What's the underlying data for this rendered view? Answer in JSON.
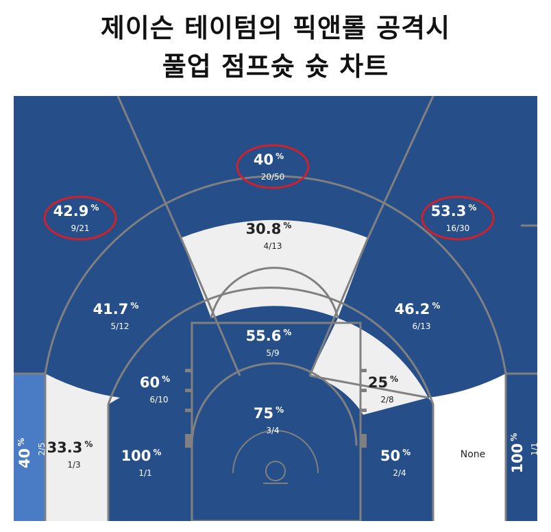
{
  "title": {
    "line1": "제이슨 테이텀의 픽앤롤 공격시",
    "line2": "풀업 점프슛 슛 차트"
  },
  "colors": {
    "blue": "#264f8a",
    "light_blue": "#4a7cc5",
    "gray": "#efefef",
    "white": "#ffffff",
    "line": "#808080",
    "highlight": "#d0212a"
  },
  "chart_data": {
    "type": "shot-zone-map",
    "title": "제이슨 테이텀의 픽앤롤 공격시 풀업 점프슛 슛 차트",
    "zones": [
      {
        "id": "above-break-3-left",
        "pct": "42.9",
        "made": 9,
        "att": 21,
        "frac": "9/21",
        "fill": "blue",
        "highlighted": true
      },
      {
        "id": "above-break-3-center",
        "pct": "40",
        "made": 20,
        "att": 50,
        "frac": "20/50",
        "fill": "blue",
        "highlighted": true
      },
      {
        "id": "above-break-3-right",
        "pct": "53.3",
        "made": 16,
        "att": 30,
        "frac": "16/30",
        "fill": "blue",
        "highlighted": true
      },
      {
        "id": "corner-3-left",
        "pct": "40",
        "made": 2,
        "att": 5,
        "frac": "2/5",
        "fill": "light_blue",
        "highlighted": false
      },
      {
        "id": "corner-3-right",
        "pct": "100",
        "made": 1,
        "att": 1,
        "frac": "1/1",
        "fill": "blue",
        "highlighted": false
      },
      {
        "id": "long-mid-left-wing",
        "pct": "41.7",
        "made": 5,
        "att": 12,
        "frac": "5/12",
        "fill": "blue",
        "highlighted": false
      },
      {
        "id": "long-mid-center",
        "pct": "30.8",
        "made": 4,
        "att": 13,
        "frac": "4/13",
        "fill": "gray",
        "highlighted": false
      },
      {
        "id": "long-mid-right-wing",
        "pct": "46.2",
        "made": 6,
        "att": 13,
        "frac": "6/13",
        "fill": "blue",
        "highlighted": false
      },
      {
        "id": "long-mid-left-baseline",
        "pct": "33.3",
        "made": 1,
        "att": 3,
        "frac": "1/3",
        "fill": "gray",
        "highlighted": false
      },
      {
        "id": "long-mid-right-baseline",
        "pct": "None",
        "made": 0,
        "att": 0,
        "frac": "",
        "fill": "white",
        "highlighted": false
      },
      {
        "id": "short-mid-center",
        "pct": "55.6",
        "made": 5,
        "att": 9,
        "frac": "5/9",
        "fill": "blue",
        "highlighted": false
      },
      {
        "id": "short-mid-left",
        "pct": "60",
        "made": 6,
        "att": 10,
        "frac": "6/10",
        "fill": "blue",
        "highlighted": false
      },
      {
        "id": "short-mid-right",
        "pct": "25",
        "made": 2,
        "att": 8,
        "frac": "2/8",
        "fill": "gray",
        "highlighted": false
      },
      {
        "id": "short-mid-left-baseline",
        "pct": "100",
        "made": 1,
        "att": 1,
        "frac": "1/1",
        "fill": "blue",
        "highlighted": false
      },
      {
        "id": "short-mid-right-baseline",
        "pct": "50",
        "made": 2,
        "att": 4,
        "frac": "2/4",
        "fill": "blue",
        "highlighted": false
      },
      {
        "id": "paint",
        "pct": "75",
        "made": 3,
        "att": 4,
        "frac": "3/4",
        "fill": "blue",
        "highlighted": false
      }
    ]
  }
}
